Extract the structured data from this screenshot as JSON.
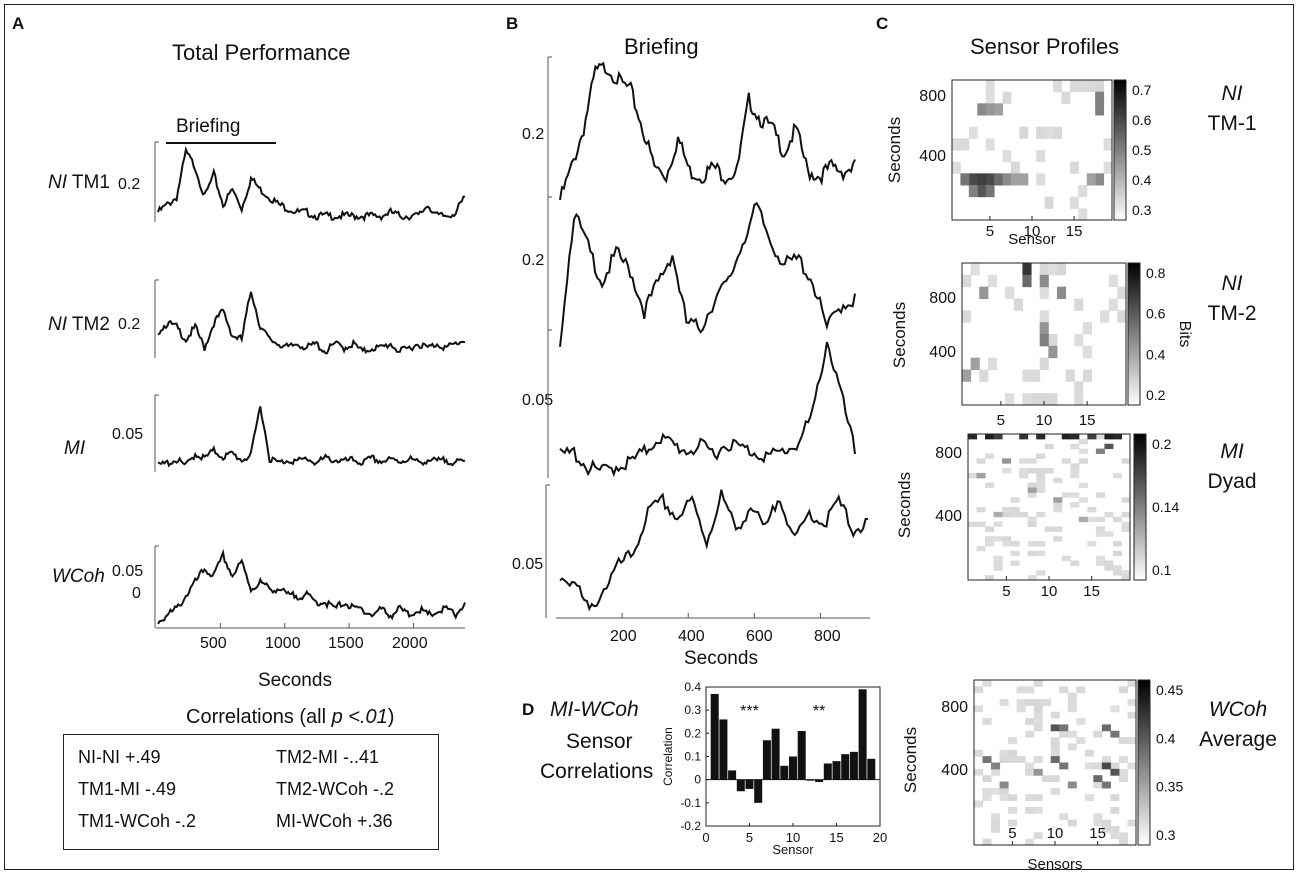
{
  "panels": {
    "a": {
      "letter": "A",
      "title": "Total Performance",
      "briefing_label": "Briefing",
      "rows": [
        {
          "label_italic": "NI",
          "label_rest": " TM1",
          "tick": "0.2"
        },
        {
          "label_italic": "NI",
          "label_rest": " TM2",
          "tick": "0.2"
        },
        {
          "label_italic": "MI",
          "label_rest": "",
          "tick": "0.05"
        },
        {
          "label_italic": "WCoh",
          "label_rest": "",
          "tick": "0.05",
          "tick2": "0"
        }
      ],
      "x_ticks": [
        "500",
        "1000",
        "1500",
        "2000"
      ],
      "xlabel": "Seconds"
    },
    "b": {
      "letter": "B",
      "title": "Briefing",
      "row_ticks": [
        "0.2",
        "0.2",
        "0.05",
        "0.05"
      ],
      "x_ticks": [
        "200",
        "400",
        "600",
        "800"
      ],
      "xlabel": "Seconds"
    },
    "c": {
      "letter": "C",
      "title": "Sensor Profiles",
      "heatmaps": [
        {
          "ylabel": "Seconds",
          "yticks": [
            "800",
            "400"
          ],
          "xticks": [
            "5",
            "10",
            "15"
          ],
          "xlabel": "Sensor",
          "cbar_ticks": [
            "0.7",
            "0.6",
            "0.5",
            "0.4",
            "0.3"
          ],
          "cbar_label": "",
          "side_italic": "NI",
          "side_rest": "TM-1"
        },
        {
          "ylabel": "Seconds",
          "yticks": [
            "800",
            "400"
          ],
          "xticks": [
            "5",
            "10",
            "15"
          ],
          "xlabel": "",
          "cbar_ticks": [
            "0.8",
            "0.6",
            "0.4",
            "0.2"
          ],
          "cbar_label": "Bits",
          "side_italic": "NI",
          "side_rest": "TM-2"
        },
        {
          "ylabel": "Seconds",
          "yticks": [
            "800",
            "400"
          ],
          "xticks": [
            "5",
            "10",
            "15"
          ],
          "xlabel": "",
          "cbar_ticks": [
            "0.2",
            "0.14",
            "0.1"
          ],
          "cbar_label": "",
          "side_italic": "MI",
          "side_rest": "Dyad"
        },
        {
          "ylabel": "Seconds",
          "yticks": [
            "800",
            "400"
          ],
          "xticks": [
            "5",
            "10",
            "15"
          ],
          "xlabel": "Sensors",
          "cbar_ticks": [
            "0.45",
            "0.4",
            "0.35",
            "0.3"
          ],
          "cbar_label": "",
          "side_italic": "WCoh",
          "side_rest": "Average"
        }
      ]
    },
    "d": {
      "letter": "D",
      "title_italic": "MI-WCoh",
      "title_line2": "Sensor",
      "title_line3": "Correlations",
      "xlabel": "Sensor",
      "ylabel": "Correlation",
      "asterisks_1": "***",
      "asterisks_2": "**"
    }
  },
  "correlations": {
    "title_prefix": "Correlations (all ",
    "title_italic": "p <.01",
    "title_suffix": ")",
    "items": [
      {
        "label": "NI-NI",
        "value": "+.49"
      },
      {
        "label": "TM2-MI",
        "value": "-..41"
      },
      {
        "label": "TM1-MI",
        "value": "-.49"
      },
      {
        "label": "TM2-WCoh",
        "value": "-.2"
      },
      {
        "label": "TM1-WCoh",
        "value": "-.2"
      },
      {
        "label": "MI-WCoh",
        "value": "+.36"
      }
    ]
  },
  "chart_data": [
    {
      "id": "A",
      "type": "line",
      "title": "Total Performance",
      "xlabel": "Seconds",
      "xlim": [
        0,
        2400
      ],
      "x_ticks": [
        500,
        1000,
        1500,
        2000
      ],
      "series": [
        {
          "name": "NI TM1",
          "ytick": 0.2,
          "values": [
            0.12,
            0.14,
            0.16,
            0.28,
            0.24,
            0.16,
            0.22,
            0.14,
            0.18,
            0.13,
            0.21,
            0.18,
            0.16,
            0.14,
            0.13,
            0.12,
            0.12,
            0.11,
            0.11,
            0.11,
            0.11,
            0.11,
            0.11,
            0.11,
            0.11,
            0.12,
            0.11,
            0.11,
            0.11,
            0.14,
            0.11,
            0.11,
            0.12,
            0.16
          ]
        },
        {
          "name": "NI TM2",
          "ytick": 0.2,
          "values": [
            0.18,
            0.2,
            0.19,
            0.16,
            0.19,
            0.14,
            0.2,
            0.23,
            0.17,
            0.16,
            0.28,
            0.19,
            0.16,
            0.15,
            0.14,
            0.15,
            0.14,
            0.15,
            0.13,
            0.15,
            0.14,
            0.15,
            0.13,
            0.14,
            0.14,
            0.15,
            0.13,
            0.14,
            0.15,
            0.14,
            0.15,
            0.14,
            0.15,
            0.16
          ]
        },
        {
          "name": "MI",
          "ytick": 0.05,
          "values": [
            0.03,
            0.032,
            0.034,
            0.03,
            0.038,
            0.035,
            0.04,
            0.036,
            0.038,
            0.034,
            0.037,
            0.07,
            0.035,
            0.032,
            0.034,
            0.033,
            0.035,
            0.032,
            0.035,
            0.034,
            0.033,
            0.034,
            0.032,
            0.035,
            0.033,
            0.034,
            0.033,
            0.035,
            0.032,
            0.034,
            0.033,
            0.034,
            0.032,
            0.033
          ]
        },
        {
          "name": "WCoh",
          "ytick": 0.05,
          "values": [
            -0.02,
            -0.01,
            0.0,
            0.02,
            0.04,
            0.06,
            0.05,
            0.08,
            0.05,
            0.07,
            0.03,
            0.04,
            0.03,
            0.03,
            0.02,
            0.02,
            0.02,
            0.01,
            0.01,
            0.0,
            0.01,
            0.0,
            0.0,
            -0.01,
            0.0,
            -0.01,
            0.0,
            -0.01,
            0.0,
            -0.01,
            -0.005,
            0.0,
            -0.01,
            0.01
          ]
        }
      ]
    },
    {
      "id": "B",
      "type": "line",
      "title": "Briefing",
      "xlabel": "Seconds",
      "xlim": [
        0,
        950
      ],
      "x_ticks": [
        200,
        400,
        600,
        800
      ],
      "series": [
        {
          "name": "NI TM1",
          "ytick": 0.2,
          "values": [
            0.05,
            0.12,
            0.2,
            0.32,
            0.33,
            0.3,
            0.28,
            0.2,
            0.12,
            0.1,
            0.18,
            0.11,
            0.1,
            0.12,
            0.1,
            0.11,
            0.26,
            0.22,
            0.2,
            0.15,
            0.2,
            0.11,
            0.1,
            0.12,
            0.11,
            0.12
          ]
        },
        {
          "name": "NI TM2",
          "ytick": 0.2,
          "values": [
            0.1,
            0.32,
            0.26,
            0.2,
            0.25,
            0.22,
            0.15,
            0.2,
            0.25,
            0.13,
            0.12,
            0.17,
            0.2,
            0.27,
            0.33,
            0.27,
            0.23,
            0.24,
            0.2,
            0.12,
            0.16,
            0.17
          ]
        },
        {
          "name": "MI",
          "ytick": 0.05,
          "values": [
            0.028,
            0.03,
            0.022,
            0.02,
            0.023,
            0.025,
            0.03,
            0.038,
            0.034,
            0.031,
            0.033,
            0.03,
            0.035,
            0.032,
            0.03,
            0.028,
            0.031,
            0.035,
            0.05,
            0.088,
            0.06,
            0.03
          ]
        },
        {
          "name": "WCoh",
          "ytick": 0.05,
          "values": [
            0.04,
            0.03,
            -0.02,
            0.02,
            0.06,
            0.08,
            0.15,
            0.17,
            0.14,
            0.17,
            0.1,
            0.18,
            0.12,
            0.16,
            0.12,
            0.18,
            0.1,
            0.15,
            0.13,
            0.17,
            0.12,
            0.13
          ]
        }
      ]
    },
    {
      "id": "C",
      "type": "heatmap",
      "title": "Sensor Profiles",
      "xlabel": "Sensor",
      "ylabel": "Seconds",
      "maps": [
        {
          "name": "NI TM-1",
          "range": [
            0.3,
            0.7
          ],
          "cols": 19,
          "rows": 12,
          "hot": [
            [
              3,
              9,
              0.75
            ],
            [
              4,
              9,
              0.8
            ],
            [
              5,
              9,
              0.75
            ],
            [
              6,
              9,
              0.6
            ],
            [
              7,
              9,
              0.45
            ],
            [
              2,
              9,
              0.55
            ],
            [
              4,
              10,
              0.7
            ],
            [
              5,
              10,
              0.55
            ],
            [
              3,
              10,
              0.5
            ],
            [
              4,
              3,
              0.45
            ],
            [
              5,
              3,
              0.4
            ],
            [
              6,
              3,
              0.35
            ],
            [
              18,
              2,
              0.5
            ],
            [
              18,
              3,
              0.5
            ],
            [
              18,
              9,
              0.45
            ],
            [
              17,
              9,
              0.35
            ],
            [
              9,
              9,
              0.35
            ],
            [
              8,
              9,
              0.35
            ]
          ]
        },
        {
          "name": "NI TM-2",
          "range": [
            0.2,
            0.8
          ],
          "cols": 19,
          "rows": 12,
          "hot": [
            [
              8,
              1,
              0.85
            ],
            [
              8,
              2,
              0.6
            ],
            [
              10,
              2,
              0.45
            ],
            [
              12,
              3,
              0.45
            ],
            [
              3,
              3,
              0.4
            ],
            [
              10,
              6,
              0.4
            ],
            [
              10,
              7,
              0.5
            ],
            [
              11,
              8,
              0.4
            ],
            [
              2,
              9,
              0.35
            ],
            [
              1,
              10,
              0.35
            ]
          ]
        },
        {
          "name": "MI Dyad",
          "range": [
            0.1,
            0.2
          ],
          "cols": 19,
          "rows": 30,
          "hot": [
            [
              1,
              1,
              0.9
            ],
            [
              3,
              1,
              0.95
            ],
            [
              4,
              1,
              0.8
            ],
            [
              7,
              1,
              0.85
            ],
            [
              9,
              1,
              0.9
            ],
            [
              12,
              1,
              0.95
            ],
            [
              13,
              1,
              0.9
            ],
            [
              15,
              1,
              0.8
            ],
            [
              17,
              1,
              0.95
            ],
            [
              18,
              1,
              0.9
            ],
            [
              17,
              3,
              0.7
            ],
            [
              16,
              4,
              0.5
            ],
            [
              5,
              6,
              0.4
            ],
            [
              2,
              9,
              0.35
            ],
            [
              8,
              12,
              0.35
            ],
            [
              11,
              14,
              0.35
            ],
            [
              4,
              17,
              0.3
            ],
            [
              14,
              18,
              0.3
            ]
          ]
        },
        {
          "name": "WCoh Average",
          "range": [
            0.3,
            0.45
          ],
          "cols": 19,
          "rows": 26,
          "hot": [
            [
              10,
              8,
              0.7
            ],
            [
              11,
              8,
              0.55
            ],
            [
              16,
              8,
              0.6
            ],
            [
              17,
              9,
              0.55
            ],
            [
              2,
              13,
              0.55
            ],
            [
              3,
              14,
              0.5
            ],
            [
              10,
              13,
              0.6
            ],
            [
              11,
              14,
              0.55
            ],
            [
              16,
              14,
              0.75
            ],
            [
              17,
              15,
              0.7
            ],
            [
              15,
              16,
              0.6
            ],
            [
              16,
              17,
              0.55
            ],
            [
              4,
              17,
              0.45
            ],
            [
              8,
              15,
              0.4
            ],
            [
              12,
              17,
              0.45
            ]
          ]
        }
      ]
    },
    {
      "id": "D",
      "type": "bar",
      "title": "MI-WCoh Sensor Correlations",
      "xlabel": "Sensor",
      "ylabel": "Correlation",
      "ylim": [
        -0.2,
        0.4
      ],
      "xlim": [
        0,
        20
      ],
      "x_ticks": [
        0,
        5,
        10,
        15,
        20
      ],
      "y_ticks": [
        0.4,
        0.3,
        0.2,
        0.1,
        0,
        -0.1,
        -0.2
      ],
      "categories": [
        1,
        2,
        3,
        4,
        5,
        6,
        7,
        8,
        9,
        10,
        11,
        12,
        13,
        14,
        15,
        16,
        17,
        18,
        19
      ],
      "values": [
        0.37,
        0.26,
        0.04,
        -0.05,
        -0.04,
        -0.1,
        0.17,
        0.22,
        0.06,
        0.1,
        0.21,
        0.0,
        -0.01,
        0.07,
        0.08,
        0.11,
        0.12,
        0.39,
        0.09
      ]
    }
  ]
}
